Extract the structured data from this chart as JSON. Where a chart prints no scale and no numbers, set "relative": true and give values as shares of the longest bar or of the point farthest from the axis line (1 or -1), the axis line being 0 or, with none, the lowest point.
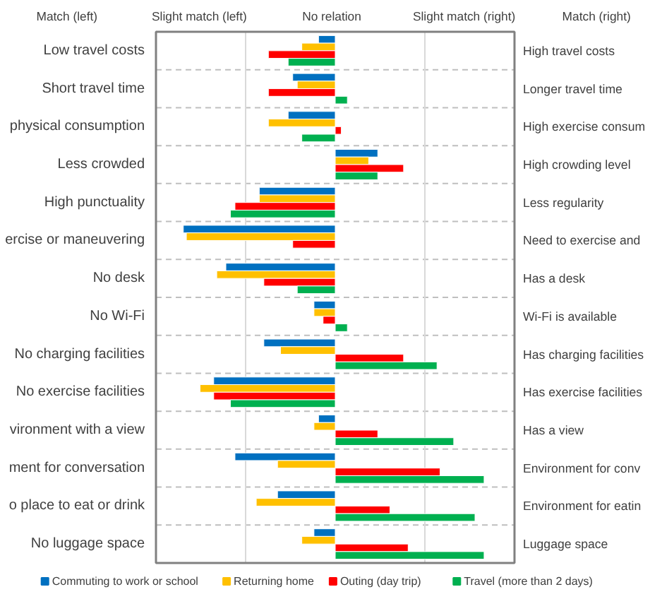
{
  "chart_data": {
    "type": "bar",
    "orientation": "horizontal",
    "relative": true,
    "annotations": [
      "Match (left)",
      "Slight match (left)",
      "No relation",
      "Slight match (right)",
      "Match (right)"
    ],
    "categories": [
      "Low travel costs",
      "Short travel time",
      "physical consumption",
      "Less crowded",
      "High punctuality",
      "ercise or maneuvering",
      "No desk",
      "No Wi-Fi",
      "No charging facilities",
      "No exercise facilities",
      "vironment with a view",
      "ment for conversation",
      "o place to eat or drink",
      "No luggage space"
    ],
    "y2_categories": [
      "High travel costs",
      "Longer travel time",
      "High exercise consum",
      "High crowding level",
      "Less regularity",
      "Need to exercise and",
      "Has a desk",
      "Wi-Fi is available",
      "Has charging facilities",
      "Has exercise facilities",
      "Has a view",
      "Environment for conv",
      "Environment for eatin",
      "Luggage space"
    ],
    "series": [
      {
        "name": "Commuting to work or school",
        "color": "#0070c0",
        "values": [
          -0.11,
          -0.28,
          -0.31,
          0.28,
          -0.5,
          -1,
          -0.72,
          -0.14,
          -0.47,
          -0.8,
          -0.11,
          -0.66,
          -0.38,
          -0.14
        ]
      },
      {
        "name": "Returning home",
        "color": "#ffc000",
        "values": [
          -0.22,
          -0.25,
          -0.44,
          0.22,
          -0.5,
          -0.98,
          -0.78,
          -0.14,
          -0.36,
          -0.89,
          -0.14,
          -0.38,
          -0.52,
          -0.22
        ]
      },
      {
        "name": "Outing (day trip)",
        "color": "#ff0000",
        "values": [
          -0.44,
          -0.44,
          0.04,
          0.45,
          -0.66,
          -0.28,
          -0.47,
          -0.08,
          0.45,
          -0.8,
          0.28,
          0.69,
          0.36,
          0.48
        ]
      },
      {
        "name": "Travel (more than 2 days)",
        "color": "#00b050",
        "values": [
          -0.31,
          0.08,
          -0.22,
          0.28,
          -0.69,
          null,
          -0.25,
          0.08,
          0.67,
          -0.69,
          0.78,
          0.98,
          0.92,
          0.98
        ]
      }
    ],
    "ref_lines": [
      {
        "axis": "x",
        "value": -0.59,
        "color": "#d9d9d9"
      },
      {
        "axis": "x",
        "value": 0.59,
        "color": "#d9d9d9"
      }
    ],
    "legend": "bottom"
  }
}
